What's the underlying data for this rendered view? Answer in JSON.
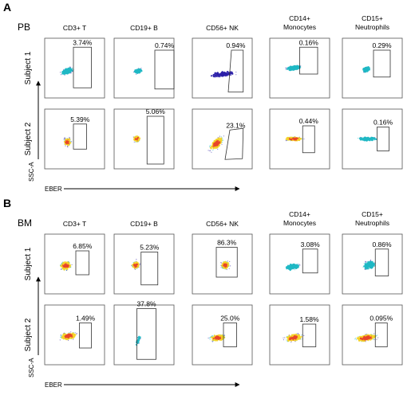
{
  "columns": [
    [
      "CD3+ T"
    ],
    [
      "CD19+ B"
    ],
    [
      "CD56+ NK"
    ],
    [
      "CD14+",
      "Monocytes"
    ],
    [
      "CD15+",
      "Neutrophils"
    ]
  ],
  "rows": [
    "Subject 1",
    "Subject 2"
  ],
  "axes": {
    "y": "SSC-A",
    "x": "EBER"
  },
  "colors": {
    "low": "#2b1fa8",
    "mid": "#1fb8c4",
    "high": "#f5d328",
    "peak": "#e8462a"
  },
  "sections": [
    {
      "letter": "A",
      "tissue": "PB",
      "percents": [
        [
          "3.74%",
          "0.74%",
          "0.94%",
          "0.16%",
          "0.29%"
        ],
        [
          "5.39%",
          "5.06%",
          "23.1%",
          "0.44%",
          "0.16%"
        ]
      ]
    },
    {
      "letter": "B",
      "tissue": "BM",
      "percents": [
        [
          "6.85%",
          "5.23%",
          "86.3%",
          "3.08%",
          "0.86%"
        ],
        [
          "1.49%",
          "37.8%",
          "25.0%",
          "1.58%",
          "0.095%"
        ]
      ]
    }
  ]
}
